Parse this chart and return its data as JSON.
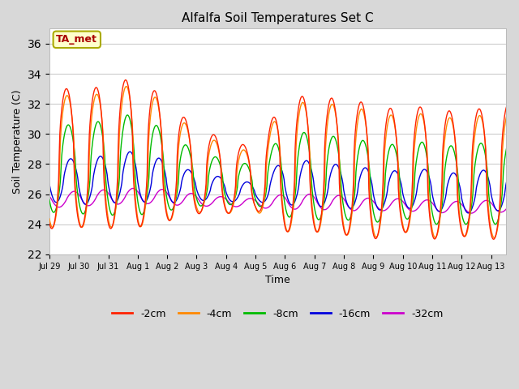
{
  "title": "Alfalfa Soil Temperatures Set C",
  "xlabel": "Time",
  "ylabel": "Soil Temperature (C)",
  "ylim": [
    22,
    37
  ],
  "yticks": [
    22,
    24,
    26,
    28,
    30,
    32,
    34,
    36
  ],
  "fig_bg_color": "#d8d8d8",
  "plot_bg_color": "#ffffff",
  "grid_color": "#cccccc",
  "colors": {
    "2cm": "#ff2200",
    "4cm": "#ff8800",
    "8cm": "#00bb00",
    "16cm": "#0000dd",
    "32cm": "#cc00cc"
  },
  "tick_labels": [
    "Jul 29",
    "Jul 30",
    "Jul 31",
    "Aug 1",
    "Aug 2",
    "Aug 3",
    "Aug 4",
    "Aug 5",
    "Aug 6",
    "Aug 7",
    "Aug 8",
    "Aug 9",
    "Aug 10",
    "Aug 11",
    "Aug 12",
    "Aug 13"
  ],
  "annotation_text": "TA_met",
  "annotation_fg": "#aa0000",
  "annotation_bg": "#ffffcc",
  "annotation_border": "#aaaa00",
  "legend_labels": [
    "-2cm",
    "-4cm",
    "-8cm",
    "-16cm",
    "-32cm"
  ]
}
